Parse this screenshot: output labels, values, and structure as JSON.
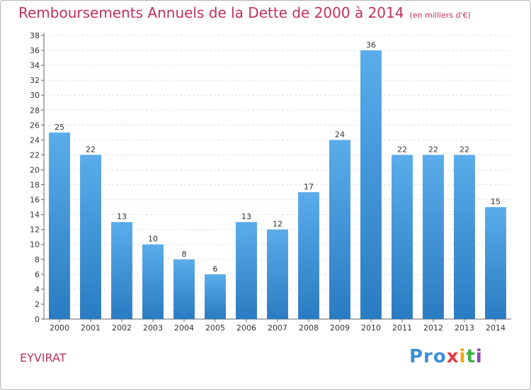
{
  "header": {
    "title": "Remboursements Annuels de la Dette de 2000 à 2014",
    "unit": "(en milliers d'€)"
  },
  "footer": {
    "place": "EYVIRAT",
    "logo": [
      "Pro",
      "x",
      "i",
      "t",
      "i"
    ]
  },
  "chart_data": {
    "type": "bar",
    "title": "Remboursements Annuels de la Dette de 2000 à 2014",
    "subtitle": "(en milliers d'€)",
    "xlabel": "",
    "ylabel": "",
    "categories": [
      "2000",
      "2001",
      "2002",
      "2003",
      "2004",
      "2005",
      "2006",
      "2007",
      "2008",
      "2009",
      "2010",
      "2011",
      "2012",
      "2013",
      "2014"
    ],
    "values": [
      25,
      22,
      13,
      10,
      8,
      6,
      13,
      12,
      17,
      24,
      36,
      22,
      22,
      22,
      15
    ],
    "ylim": [
      0,
      38
    ],
    "yticks": [
      0,
      2,
      4,
      6,
      8,
      10,
      12,
      14,
      16,
      18,
      20,
      22,
      24,
      26,
      28,
      30,
      32,
      34,
      36,
      38
    ],
    "grid": true,
    "bar_color_top": "#5aacea",
    "bar_color_bottom": "#2b7bc2",
    "legend": "none"
  }
}
